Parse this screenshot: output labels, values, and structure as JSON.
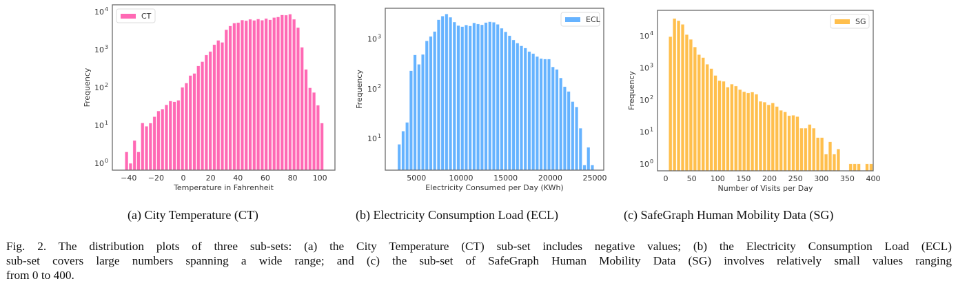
{
  "subcaptions": {
    "a": "(a) City Temperature (CT)",
    "b": "(b) Electricity Consumption Load (ECL)",
    "c": "(c) SafeGraph Human Mobility Data (SG)"
  },
  "caption": {
    "lines": [
      "Fig. 2.  The distribution plots of three sub-sets: (a) the City Temperature (CT) sub-set includes negative values; (b) the Electricity Consumption Load (ECL)",
      "sub-set covers large numbers spanning a wide range; and (c) the sub-set of SafeGraph Human Mobility Data (SG) involves relatively small values ranging",
      "from 0 to 400."
    ]
  },
  "chart_data": [
    {
      "type": "bar",
      "id": "ct",
      "title": "",
      "legend": "CT",
      "legend_position": "top-left",
      "color": "#ff69b4",
      "xlabel": "Temperature in Fahrenheit",
      "ylabel": "Frequency",
      "yscale": "log",
      "xlim": [
        -52,
        111
      ],
      "ylim_log10": [
        -0.18,
        4.18
      ],
      "xticks": [
        -40,
        -20,
        0,
        20,
        40,
        60,
        80,
        100
      ],
      "xtick_labels": [
        "−40",
        "−20",
        "0",
        "20",
        "40",
        "60",
        "80",
        "100"
      ],
      "yticks_exp": [
        0,
        1,
        2,
        3,
        4
      ],
      "bin_start": -43,
      "bin_width": 2.92,
      "values": [
        2,
        1,
        4,
        2,
        11.6,
        9.5,
        11.5,
        17,
        24,
        27,
        35,
        44,
        42,
        46,
        101,
        131,
        207,
        235,
        370,
        480,
        720,
        890,
        1350,
        1750,
        1550,
        3350,
        4200,
        5000,
        5150,
        6000,
        5800,
        6300,
        5900,
        6400,
        5950,
        6600,
        6100,
        7000,
        7250,
        8200,
        8100,
        8600,
        6300,
        3800,
        1150,
        300,
        98,
        74,
        34,
        11.5
      ]
    },
    {
      "type": "bar",
      "id": "ecl",
      "title": "",
      "legend": "ECL",
      "legend_position": "top-right",
      "color": "#66b3ff",
      "xlabel": "Electricity Consumed per Day (KWh)",
      "ylabel": "Frequency",
      "yscale": "log",
      "xlim": [
        1500,
        26000
      ],
      "ylim_log10": [
        0.36,
        3.62
      ],
      "xticks": [
        5000,
        10000,
        15000,
        20000,
        25000
      ],
      "xtick_labels": [
        "5000",
        "10000",
        "15000",
        "20000",
        "25000"
      ],
      "yticks_exp": [
        1,
        2,
        3
      ],
      "bin_start": 2850,
      "bin_width": 442,
      "values": [
        7.6,
        14,
        21,
        230,
        480,
        310,
        490,
        920,
        1130,
        1420,
        2450,
        2900,
        3200,
        2750,
        2200,
        1870,
        1780,
        1920,
        1840,
        2120,
        2010,
        1940,
        2150,
        2230,
        2180,
        1980,
        1650,
        1400,
        1170,
        960,
        830,
        730,
        660,
        560,
        510,
        445,
        405,
        395,
        395,
        275,
        245,
        165,
        110,
        88,
        55,
        43,
        16,
        2.9,
        6.6,
        2.9
      ]
    },
    {
      "type": "bar",
      "id": "sg",
      "title": "",
      "legend": "SG",
      "legend_position": "top-right",
      "color": "#ffbf4d",
      "xlabel": "Number of Visits per Day",
      "ylabel": "Frequency",
      "yscale": "log",
      "xlim": [
        -16,
        400
      ],
      "ylim_log10": [
        -0.22,
        4.8
      ],
      "xticks": [
        0,
        50,
        100,
        150,
        200,
        250,
        300,
        350,
        400
      ],
      "xtick_labels": [
        "0",
        "50",
        "100",
        "150",
        "200",
        "250",
        "300",
        "350",
        "400"
      ],
      "yticks_exp": [
        0,
        1,
        2,
        3,
        4
      ],
      "bin_start": 5,
      "bin_width": 7.9,
      "values": [
        9500,
        35000,
        30000,
        23000,
        11000,
        7800,
        4500,
        2600,
        2100,
        1300,
        950,
        580,
        400,
        380,
        250,
        310,
        270,
        210,
        180,
        165,
        175,
        150,
        90,
        85,
        70,
        80,
        62,
        47,
        42,
        32,
        33,
        30,
        13,
        13,
        17,
        13,
        6.6,
        6.6,
        2,
        4.9,
        2,
        2.9,
        0,
        0,
        1,
        1,
        1,
        0,
        1,
        1
      ]
    }
  ]
}
